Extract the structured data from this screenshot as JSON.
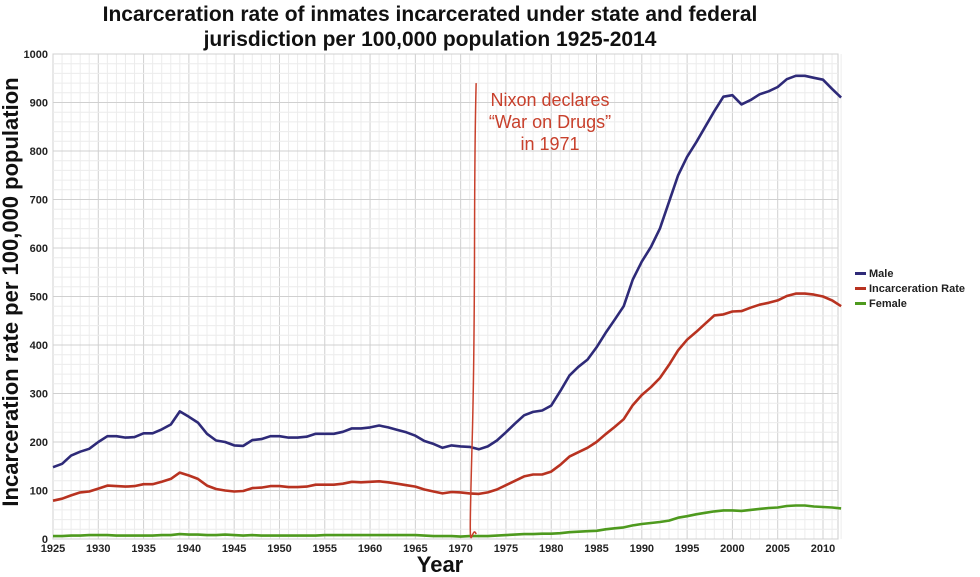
{
  "chart_data": {
    "type": "line",
    "title": "Incarceration rate of inmates incarcerated under state and federal jurisdiction per 100,000 population 1925-2014",
    "title_lines": [
      "Incarceration rate of inmates incarcerated under state and federal",
      "jurisdiction per 100,000 population 1925-2014"
    ],
    "xlabel": "Year",
    "ylabel": "Incarceration rate per 100,000 population",
    "xlim": [
      1925,
      2012
    ],
    "ylim": [
      0,
      1000
    ],
    "x_ticks": [
      1925,
      1930,
      1935,
      1940,
      1945,
      1950,
      1955,
      1960,
      1965,
      1970,
      1975,
      1980,
      1985,
      1990,
      1995,
      2000,
      2005,
      2010
    ],
    "y_ticks": [
      0,
      100,
      200,
      300,
      400,
      500,
      600,
      700,
      800,
      900,
      1000
    ],
    "grid": true,
    "legend_position": "right",
    "x_start": 1925,
    "series": [
      {
        "name": "Male",
        "color": "#2e2a78",
        "values": [
          148,
          155,
          172,
          180,
          186,
          200,
          212,
          212,
          209,
          210,
          218,
          218,
          226,
          236,
          263,
          252,
          240,
          217,
          203,
          200,
          193,
          192,
          204,
          206,
          212,
          212,
          209,
          209,
          211,
          217,
          217,
          217,
          221,
          228,
          228,
          230,
          234,
          230,
          225,
          220,
          213,
          202,
          196,
          188,
          193,
          191,
          190,
          185,
          191,
          203,
          220,
          238,
          255,
          262,
          265,
          275,
          305,
          337,
          355,
          370,
          395,
          425,
          452,
          480,
          535,
          572,
          602,
          640,
          695,
          750,
          788,
          818,
          850,
          882,
          912,
          915,
          896,
          905,
          917,
          923,
          932,
          948,
          955,
          955,
          951,
          947,
          928,
          910
        ]
      },
      {
        "name": "Incarceration Rate",
        "color": "#b83220",
        "values": [
          79,
          83,
          90,
          96,
          98,
          104,
          110,
          109,
          108,
          109,
          113,
          113,
          118,
          124,
          137,
          131,
          124,
          110,
          103,
          100,
          98,
          99,
          105,
          106,
          109,
          109,
          107,
          107,
          108,
          112,
          112,
          112,
          114,
          118,
          117,
          118,
          119,
          117,
          114,
          111,
          108,
          102,
          98,
          94,
          97,
          96,
          94,
          93,
          96,
          102,
          111,
          120,
          129,
          133,
          133,
          139,
          153,
          170,
          179,
          188,
          200,
          216,
          231,
          247,
          276,
          297,
          313,
          332,
          359,
          389,
          411,
          427,
          444,
          461,
          463,
          469,
          470,
          477,
          483,
          487,
          492,
          501,
          506,
          506,
          504,
          500,
          492,
          480
        ]
      },
      {
        "name": "Female",
        "color": "#4e9a1e",
        "values": [
          6,
          6,
          7,
          7,
          8,
          8,
          8,
          7,
          7,
          7,
          7,
          7,
          8,
          8,
          10,
          9,
          9,
          8,
          8,
          9,
          8,
          7,
          8,
          7,
          7,
          7,
          7,
          7,
          7,
          7,
          8,
          8,
          8,
          8,
          8,
          8,
          8,
          8,
          8,
          8,
          8,
          7,
          6,
          6,
          6,
          5,
          6,
          6,
          6,
          7,
          8,
          9,
          10,
          10,
          11,
          11,
          12,
          14,
          15,
          16,
          17,
          20,
          22,
          24,
          28,
          31,
          33,
          35,
          38,
          44,
          47,
          51,
          54,
          57,
          59,
          59,
          58,
          60,
          62,
          64,
          65,
          68,
          69,
          69,
          67,
          66,
          65,
          63
        ]
      }
    ],
    "annotation": {
      "lines": [
        "Nixon declares",
        "“War on Drugs”",
        "in 1971"
      ],
      "color": "#c8402c",
      "marker_year": 1971.6
    }
  }
}
